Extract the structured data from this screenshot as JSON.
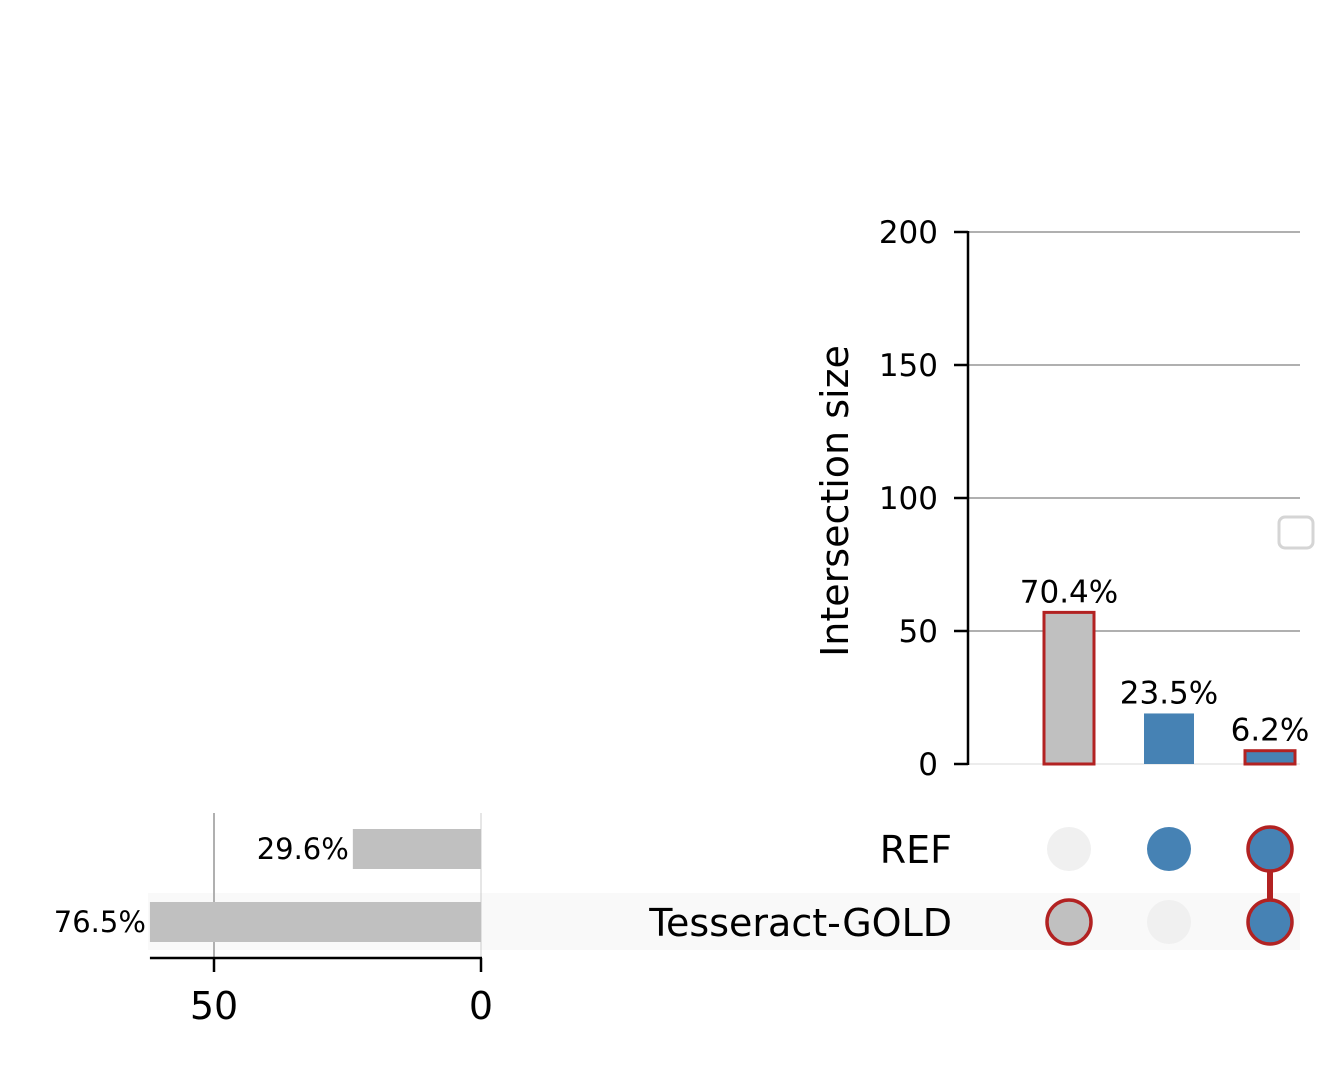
{
  "chart_data": {
    "type": "bar",
    "subtype": "upset",
    "intersections": {
      "ylabel": "Intersection size",
      "ylim": [
        0,
        200
      ],
      "yticks": [
        0,
        50,
        100,
        150,
        200
      ],
      "grid": true,
      "bars": [
        {
          "sets": [
            "Tesseract-GOLD"
          ],
          "value": 57,
          "label": "70.4%",
          "color": "#c0c0c0",
          "highlighted": true
        },
        {
          "sets": [
            "REF"
          ],
          "value": 19,
          "label": "23.5%",
          "color": "#4682b4",
          "highlighted": false
        },
        {
          "sets": [
            "REF",
            "Tesseract-GOLD"
          ],
          "value": 5,
          "label": "6.2%",
          "color": "#4682b4",
          "highlighted": true
        }
      ]
    },
    "sets": [
      {
        "name": "REF",
        "size": 24,
        "label": "29.6%"
      },
      {
        "name": "Tesseract-GOLD",
        "size": 62,
        "label": "76.5%"
      }
    ],
    "set_size_axis": {
      "ticks": [
        50,
        0
      ],
      "xlim": [
        62,
        0
      ]
    },
    "legend": {
      "placement": "right",
      "entries": []
    }
  },
  "colors": {
    "highlight_edge": "#b22222",
    "gray_bar": "#c0c0c0",
    "blue": "#4682b4",
    "inactive_dot": "#f0f0f0",
    "grid": "#b0b0b0",
    "row_shade": "#f9f9f9"
  }
}
